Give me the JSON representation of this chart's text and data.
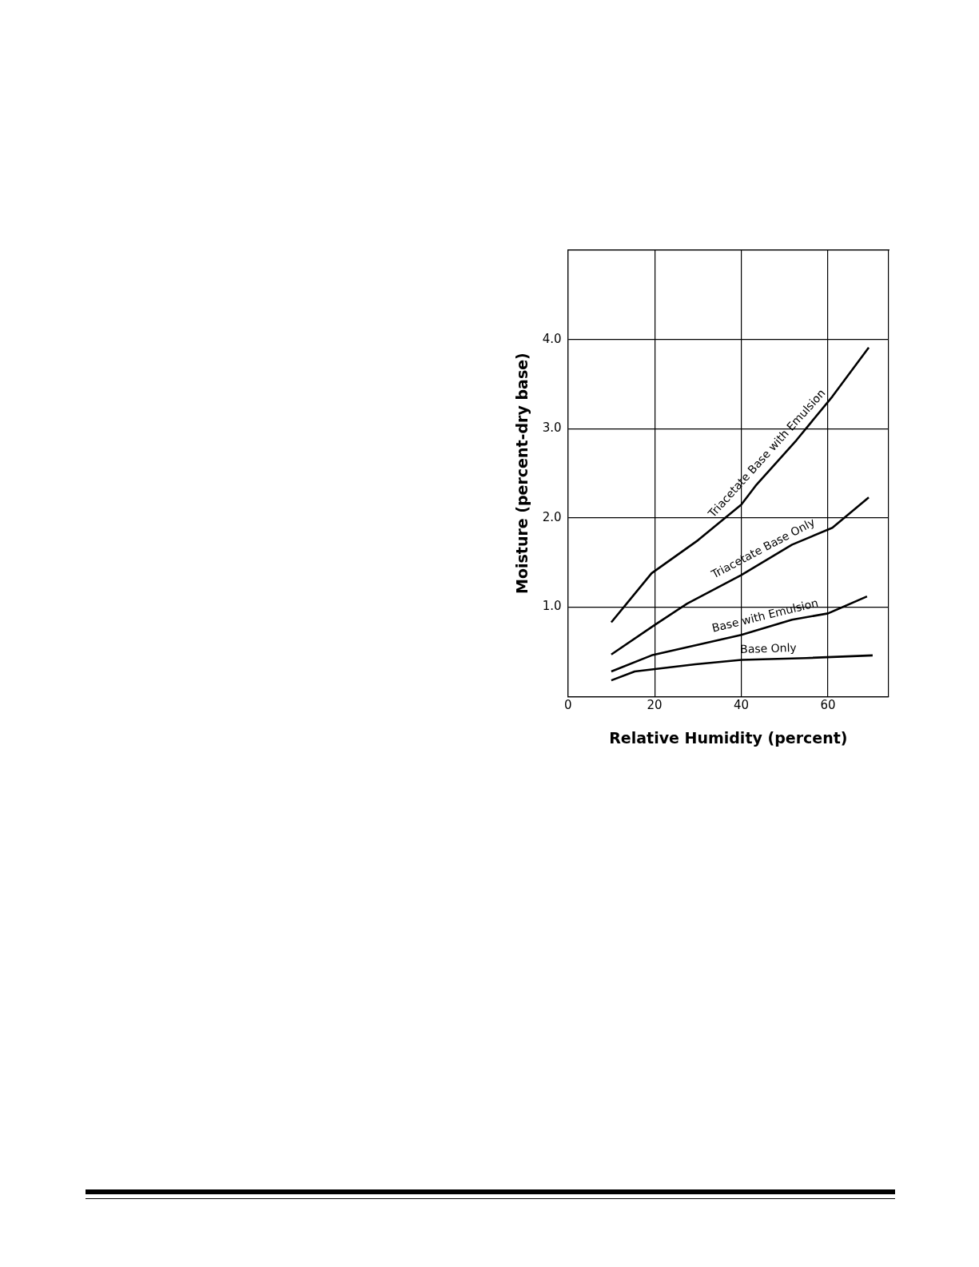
{
  "chart_data": {
    "type": "line",
    "xlabel": "Relative Humidity (percent)",
    "ylabel": "Moisture (percent-dry base)",
    "xlim": [
      0,
      74
    ],
    "xticks": [
      0,
      20,
      40,
      60
    ],
    "ylim": [
      0,
      5
    ],
    "yticks": [
      {
        "value": 0,
        "label": null
      },
      {
        "value": 1,
        "label": "1.0"
      },
      {
        "value": 2,
        "label": "2.0"
      },
      {
        "value": 3,
        "label": "3.0"
      },
      {
        "value": 4,
        "label": "4.0"
      },
      {
        "value": 5,
        "label": null
      }
    ],
    "grid": true,
    "legend": false,
    "marker": "none",
    "line_style": "solid",
    "series": [
      {
        "name": "Triacetate Base with Emulsion",
        "color": "#000000",
        "x": [
          10,
          19.3,
          30,
          40,
          43.3,
          52.7,
          61,
          69.4
        ],
        "values": [
          0.83,
          1.38,
          1.75,
          2.15,
          2.36,
          2.87,
          3.36,
          3.91
        ]
      },
      {
        "name": "Triacetate Base Only",
        "color": "#000000",
        "x": [
          10,
          20,
          27.5,
          40,
          51.7,
          61,
          69.4
        ],
        "values": [
          0.47,
          0.8,
          1.04,
          1.36,
          1.7,
          1.89,
          2.23
        ]
      },
      {
        "name": "Base with Emulsion",
        "color": "#000000",
        "x": [
          10,
          19.3,
          40,
          51.7,
          60,
          69
        ],
        "values": [
          0.28,
          0.46,
          0.69,
          0.86,
          0.93,
          1.12
        ]
      },
      {
        "name": "Base Only",
        "color": "#000000",
        "x": [
          10,
          15.4,
          29.4,
          40,
          55,
          70.3
        ],
        "values": [
          0.18,
          0.28,
          0.36,
          0.41,
          0.43,
          0.46
        ]
      }
    ]
  }
}
